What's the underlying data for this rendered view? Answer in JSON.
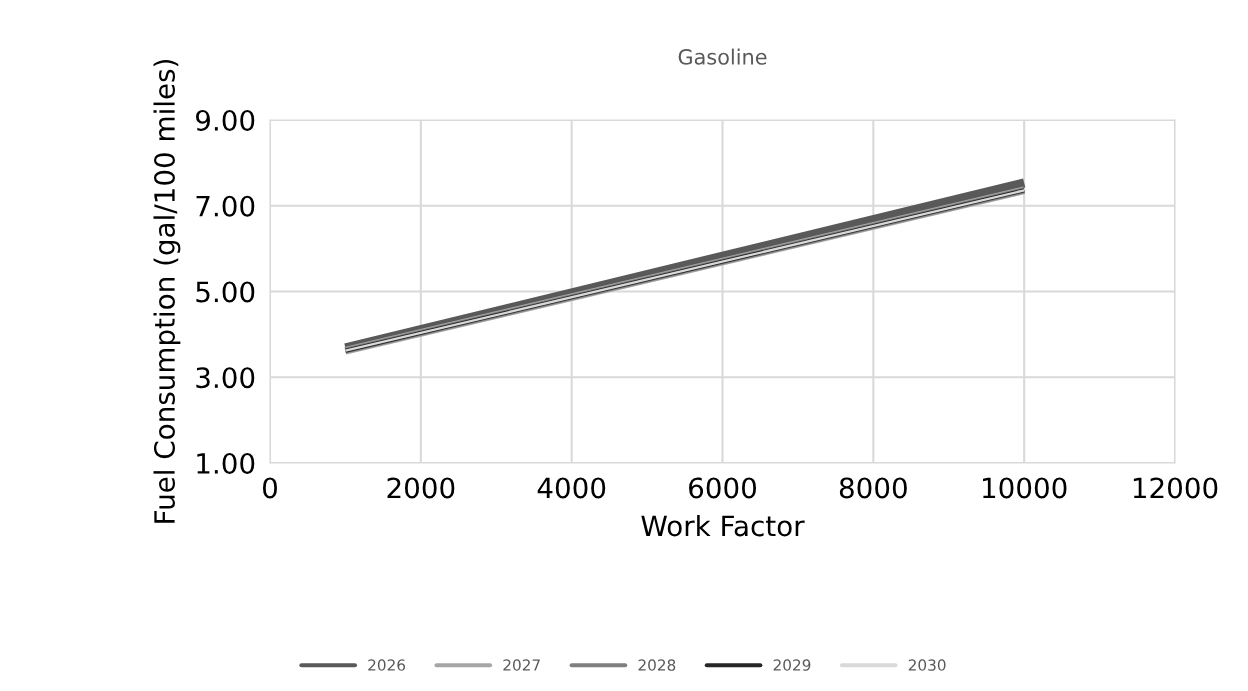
{
  "chart_data": {
    "type": "line",
    "title": "Gasoline",
    "xlabel": "Work Factor",
    "ylabel": "Fuel Consumption (gal/100 miles)",
    "x": [
      1000,
      10000
    ],
    "series": [
      {
        "name": "2026",
        "color": "#595959",
        "values": [
          3.68,
          7.53
        ]
      },
      {
        "name": "2027",
        "color": "#a6a6a6",
        "values": [
          3.62,
          7.36
        ]
      },
      {
        "name": "2028",
        "color": "#7f7f7f",
        "values": [
          3.62,
          7.36
        ]
      },
      {
        "name": "2029",
        "color": "#262626",
        "values": [
          3.62,
          7.36
        ]
      },
      {
        "name": "2030",
        "color": "#d9d9d9",
        "values": [
          3.62,
          7.36
        ]
      }
    ],
    "xlim": [
      0,
      12000
    ],
    "xticks": [
      0,
      2000,
      4000,
      6000,
      8000,
      10000,
      12000
    ],
    "ylim": [
      1,
      9
    ],
    "yticks": [
      {
        "value": 1,
        "label": "1.00"
      },
      {
        "value": 3,
        "label": "3.00"
      },
      {
        "value": 5,
        "label": "5.00"
      },
      {
        "value": 7,
        "label": "7.00"
      },
      {
        "value": 9,
        "label": "9.00"
      }
    ],
    "grid": true,
    "legend": "bottom",
    "marker": "none",
    "line_style": "solid"
  }
}
